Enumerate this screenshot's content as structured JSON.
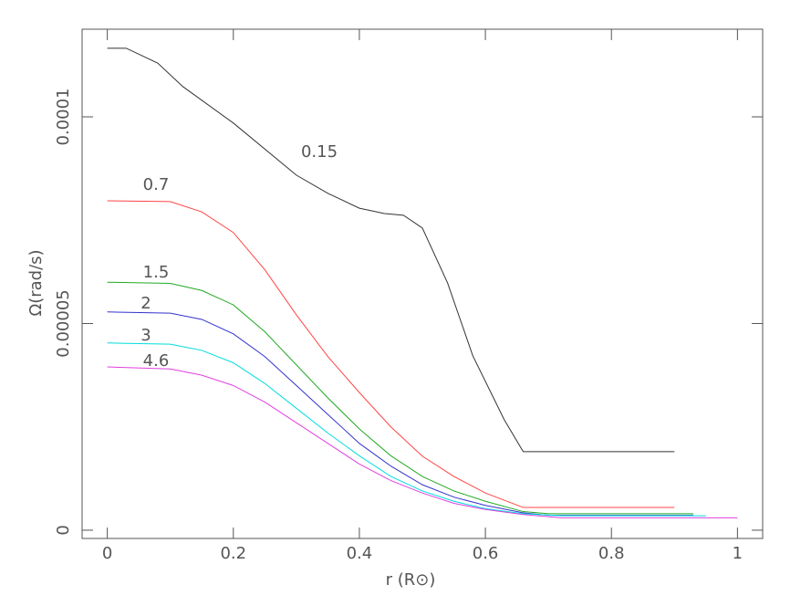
{
  "chart_data": {
    "type": "line",
    "xlabel": "r (R⊙)",
    "ylabel": "Ω(rad/s)",
    "xlim": [
      -0.04,
      1.04
    ],
    "ylim": [
      -2e-06,
      0.0001212
    ],
    "xticks": [
      0,
      0.2,
      0.4,
      0.6,
      0.8,
      1
    ],
    "yticks": [
      0,
      {
        "value": 5e-05,
        "label": "0.00005"
      },
      0.0001
    ],
    "series": [
      {
        "name": "0.15",
        "color": "#333333",
        "x": [
          0,
          0.03,
          0.08,
          0.12,
          0.2,
          0.3,
          0.35,
          0.4,
          0.44,
          0.47,
          0.5,
          0.54,
          0.58,
          0.63,
          0.66,
          0.9
        ],
        "values": [
          0.0001166,
          0.0001166,
          0.000113,
          0.0001073,
          9.85e-05,
          8.59e-05,
          8.15e-05,
          7.79e-05,
          7.66e-05,
          7.62e-05,
          7.31e-05,
          5.98e-05,
          4.22e-05,
          2.67e-05,
          1.9e-05,
          1.9e-05
        ]
      },
      {
        "name": "0.7",
        "color": "#ff4444",
        "x": [
          0,
          0.1,
          0.15,
          0.2,
          0.25,
          0.3,
          0.35,
          0.4,
          0.45,
          0.5,
          0.55,
          0.6,
          0.66,
          0.9
        ],
        "values": [
          7.97e-05,
          7.95e-05,
          7.7e-05,
          7.2e-05,
          6.3e-05,
          5.21e-05,
          4.2e-05,
          3.33e-05,
          2.5e-05,
          1.79e-05,
          1.3e-05,
          9e-06,
          5.5e-06,
          5.5e-06
        ]
      },
      {
        "name": "1.5",
        "color": "#22aa22",
        "x": [
          0,
          0.1,
          0.15,
          0.2,
          0.25,
          0.3,
          0.35,
          0.4,
          0.45,
          0.5,
          0.55,
          0.6,
          0.66,
          0.7,
          0.93
        ],
        "values": [
          6e-05,
          5.97e-05,
          5.8e-05,
          5.45e-05,
          4.8e-05,
          4e-05,
          3.2e-05,
          2.45e-05,
          1.8e-05,
          1.3e-05,
          9.5e-06,
          7e-06,
          4.5e-06,
          4e-06,
          4e-06
        ]
      },
      {
        "name": "2",
        "color": "#3333cc",
        "x": [
          0,
          0.1,
          0.15,
          0.2,
          0.25,
          0.3,
          0.35,
          0.4,
          0.45,
          0.5,
          0.55,
          0.6,
          0.66,
          0.7,
          0.93
        ],
        "values": [
          5.28e-05,
          5.25e-05,
          5.1e-05,
          4.75e-05,
          4.2e-05,
          3.5e-05,
          2.8e-05,
          2.1e-05,
          1.55e-05,
          1.1e-05,
          8e-06,
          6e-06,
          4.2e-06,
          3.6e-06,
          3.6e-06
        ]
      },
      {
        "name": "3",
        "color": "#00dddd",
        "x": [
          0,
          0.1,
          0.15,
          0.2,
          0.25,
          0.3,
          0.35,
          0.4,
          0.45,
          0.5,
          0.55,
          0.6,
          0.66,
          0.72,
          0.95
        ],
        "values": [
          4.53e-05,
          4.5e-05,
          4.35e-05,
          4.05e-05,
          3.55e-05,
          2.95e-05,
          2.35e-05,
          1.8e-05,
          1.3e-05,
          9.5e-06,
          7e-06,
          5.2e-06,
          4e-06,
          3.5e-06,
          3.5e-06
        ]
      },
      {
        "name": "4.6",
        "color": "#e040e0",
        "x": [
          0,
          0.1,
          0.15,
          0.2,
          0.25,
          0.3,
          0.35,
          0.4,
          0.45,
          0.5,
          0.55,
          0.6,
          0.66,
          0.72,
          1
        ],
        "values": [
          3.95e-05,
          3.9e-05,
          3.75e-05,
          3.5e-05,
          3.1e-05,
          2.6e-05,
          2.1e-05,
          1.6e-05,
          1.2e-05,
          9e-06,
          6.5e-06,
          5e-06,
          3.8e-06,
          3e-06,
          3e-06
        ]
      }
    ]
  }
}
